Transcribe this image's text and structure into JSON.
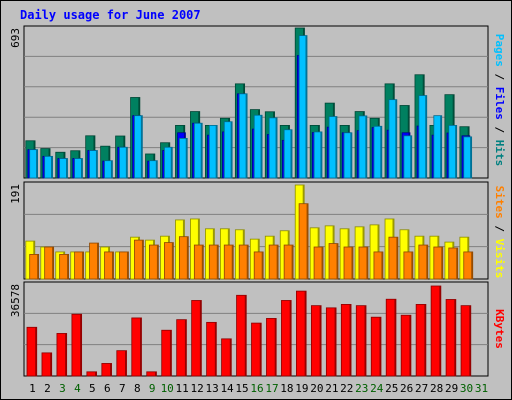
{
  "chart_data": {
    "type": "bar",
    "title": "Daily usage for June 2007",
    "categories": [
      "1",
      "2",
      "3",
      "4",
      "5",
      "6",
      "7",
      "8",
      "9",
      "10",
      "11",
      "12",
      "13",
      "14",
      "15",
      "16",
      "17",
      "18",
      "19",
      "20",
      "21",
      "22",
      "23",
      "24",
      "25",
      "26",
      "27",
      "28",
      "29",
      "30",
      "31"
    ],
    "category_colors": [
      "#000000",
      "#000000",
      "#006000",
      "#006000",
      "#000000",
      "#000000",
      "#000000",
      "#000000",
      "#006000",
      "#006000",
      "#000000",
      "#000000",
      "#000000",
      "#000000",
      "#000000",
      "#006000",
      "#006000",
      "#000000",
      "#000000",
      "#000000",
      "#000000",
      "#000000",
      "#006000",
      "#006000",
      "#000000",
      "#000000",
      "#000000",
      "#000000",
      "#000000",
      "#006000",
      "#006000"
    ],
    "panels": [
      {
        "name": "hits-files-pages",
        "ymax_label": "693",
        "ymax": 693,
        "axis_label": {
          "parts": [
            {
              "text": "Pages",
              "color": "#00c0ff"
            },
            {
              "text": " / ",
              "color": "#000000"
            },
            {
              "text": "Files",
              "color": "#0000ff"
            },
            {
              "text": " / ",
              "color": "#000000"
            },
            {
              "text": "Hits",
              "color": "#008080"
            }
          ]
        },
        "series": [
          {
            "name": "Hits",
            "color": "#008060",
            "values": [
              172,
              136,
              119,
              126,
              195,
              147,
              194,
              372,
              111,
              163,
              243,
              307,
              243,
              276,
              435,
              316,
              306,
              243,
              693,
              243,
              346,
              243,
              307,
              276,
              435,
              335,
              477,
              243,
              385,
              237,
              0
            ]
          },
          {
            "name": "Files",
            "color": "#0000ff",
            "values": [
              131,
              100,
              90,
              90,
              127,
              78,
              142,
              288,
              78,
              127,
              209,
              253,
              198,
              213,
              389,
              226,
              201,
              174,
              566,
              210,
              235,
              209,
              219,
              233,
              221,
              209,
              240,
              198,
              208,
              195,
              0
            ]
          },
          {
            "name": "Pages",
            "color": "#00c0ff",
            "values": [
              131,
              100,
              90,
              90,
              127,
              80,
              142,
              288,
              80,
              142,
              183,
              253,
              243,
              260,
              389,
              290,
              278,
              223,
              658,
              213,
              284,
              209,
              287,
              239,
              362,
              195,
              381,
              288,
              243,
              190,
              0
            ]
          }
        ]
      },
      {
        "name": "visits-sites",
        "ymax_label": "191",
        "ymax": 191,
        "axis_label": {
          "parts": [
            {
              "text": "Sites",
              "color": "#ff8000"
            },
            {
              "text": " / ",
              "color": "#000000"
            },
            {
              "text": "Visits",
              "color": "#ffff00"
            }
          ]
        },
        "series": [
          {
            "name": "Visits",
            "color": "#ffff00",
            "values": [
              77,
              65,
              55,
              55,
              55,
              65,
              55,
              85,
              79,
              87,
              120,
              122,
              102,
              102,
              100,
              81,
              87,
              98,
              191,
              104,
              108,
              102,
              106,
              110,
              122,
              100,
              87,
              87,
              75,
              85,
              0
            ]
          },
          {
            "name": "Sites",
            "color": "#ff8000",
            "values": [
              50,
              65,
              50,
              55,
              73,
              55,
              55,
              79,
              69,
              74,
              86,
              69,
              69,
              69,
              69,
              55,
              69,
              69,
              153,
              65,
              72,
              65,
              65,
              55,
              85,
              55,
              69,
              65,
              63,
              55,
              0
            ]
          }
        ]
      },
      {
        "name": "kbytes",
        "ymax_label": "36578",
        "ymax": 36578,
        "axis_label": {
          "parts": [
            {
              "text": "KBytes",
              "color": "#ff0000"
            }
          ]
        },
        "series": [
          {
            "name": "KBytes",
            "color": "#ff0000",
            "values": [
              19800,
              9400,
              17300,
              25100,
              1700,
              5100,
              10300,
              23600,
              1700,
              18600,
              22900,
              30700,
              21800,
              15100,
              32800,
              21500,
              23400,
              30700,
              34500,
              28600,
              27700,
              29100,
              28600,
              23900,
              31200,
              24700,
              29100,
              36578,
              31100,
              28600,
              0
            ]
          }
        ]
      }
    ]
  }
}
